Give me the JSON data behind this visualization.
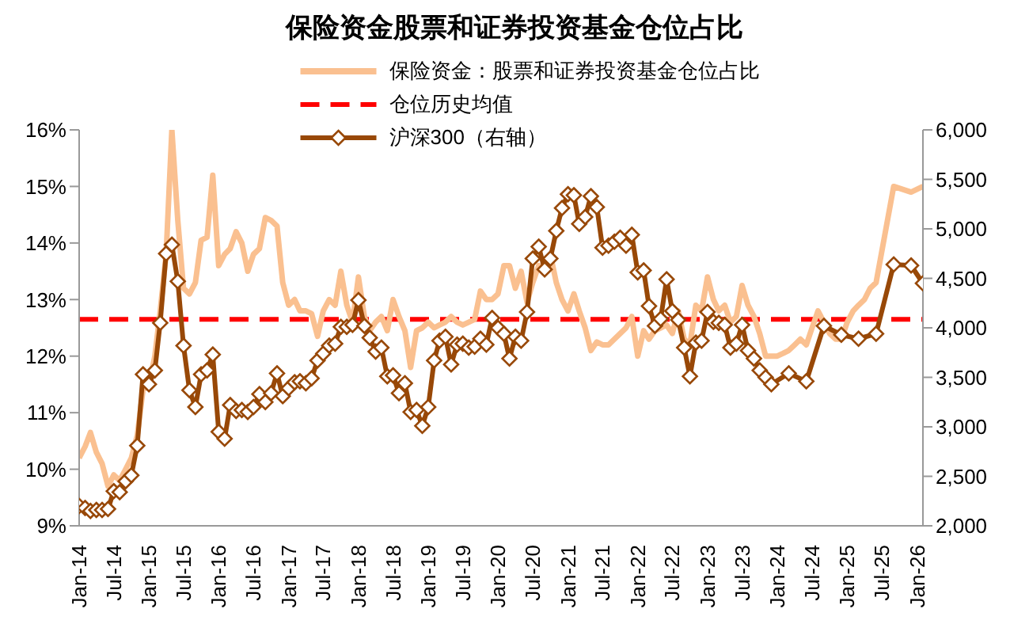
{
  "chart_data": {
    "type": "line",
    "title": "保险资金股票和证券投资基金仓位占比",
    "series": [
      {
        "name": "保险资金：股票和证券投资基金仓位占比",
        "color": "#fac090",
        "marker": "none",
        "line_style": "solid",
        "x": [
          "2014-01",
          "2014-02",
          "2014-03",
          "2014-04",
          "2014-05",
          "2014-06",
          "2014-07",
          "2014-08",
          "2014-09",
          "2014-10",
          "2014-11",
          "2014-12",
          "2015-01",
          "2015-02",
          "2015-03",
          "2015-04",
          "2015-05",
          "2015-06",
          "2015-07",
          "2015-08",
          "2015-09",
          "2015-10",
          "2015-11",
          "2015-12",
          "2016-01",
          "2016-02",
          "2016-03",
          "2016-04",
          "2016-05",
          "2016-06",
          "2016-07",
          "2016-08",
          "2016-09",
          "2016-10",
          "2016-11",
          "2016-12",
          "2017-01",
          "2017-02",
          "2017-03",
          "2017-04",
          "2017-05",
          "2017-06",
          "2017-07",
          "2017-08",
          "2017-09",
          "2017-10",
          "2017-11",
          "2017-12",
          "2018-01",
          "2018-02",
          "2018-03",
          "2018-04",
          "2018-05",
          "2018-06",
          "2018-07",
          "2018-08",
          "2018-09",
          "2018-10",
          "2018-11",
          "2018-12",
          "2019-01",
          "2019-02",
          "2019-03",
          "2019-04",
          "2019-05",
          "2019-06",
          "2019-07",
          "2019-08",
          "2019-09",
          "2019-10",
          "2019-11",
          "2019-12",
          "2020-01",
          "2020-02",
          "2020-03",
          "2020-04",
          "2020-05",
          "2020-06",
          "2020-07",
          "2020-08",
          "2020-09",
          "2020-10",
          "2020-11",
          "2020-12",
          "2021-01",
          "2021-02",
          "2021-03",
          "2021-04",
          "2021-05",
          "2021-06",
          "2021-07",
          "2021-08",
          "2021-09",
          "2021-10",
          "2021-11",
          "2021-12",
          "2022-01",
          "2022-02",
          "2022-03",
          "2022-04",
          "2022-05",
          "2022-06",
          "2022-07",
          "2022-08",
          "2022-09",
          "2022-10",
          "2022-11",
          "2022-12",
          "2023-01",
          "2023-02",
          "2023-03",
          "2023-04",
          "2023-05",
          "2023-06",
          "2023-07",
          "2023-08",
          "2023-09",
          "2023-10",
          "2023-11",
          "2023-12",
          "2024-01",
          "2024-02",
          "2024-03",
          "2024-04",
          "2024-05",
          "2024-06",
          "2024-07",
          "2024-08",
          "2024-09",
          "2024-10",
          "2024-11",
          "2024-12",
          "2025-01",
          "2025-02",
          "2025-03",
          "2025-04",
          "2025-05",
          "2025-06",
          "2025-09",
          "2025-12",
          "2026-02"
        ],
        "values": [
          10.2,
          10.4,
          10.65,
          10.3,
          10.1,
          9.7,
          9.9,
          9.8,
          10.0,
          10.2,
          10.6,
          11.4,
          11.5,
          12.0,
          12.8,
          13.8,
          16.0,
          14.4,
          13.2,
          13.1,
          13.3,
          14.05,
          14.1,
          15.2,
          13.6,
          13.8,
          13.9,
          14.2,
          14.0,
          13.5,
          13.8,
          13.9,
          14.45,
          14.4,
          14.3,
          13.3,
          12.9,
          13.0,
          12.8,
          12.8,
          12.75,
          12.35,
          12.8,
          13.0,
          12.9,
          13.5,
          12.9,
          12.6,
          13.4,
          12.7,
          12.45,
          12.6,
          12.7,
          12.45,
          13.0,
          12.7,
          12.45,
          11.8,
          12.45,
          12.5,
          12.6,
          12.5,
          12.55,
          12.6,
          12.7,
          12.6,
          12.55,
          12.6,
          12.65,
          13.15,
          13.0,
          13.0,
          13.1,
          13.6,
          13.6,
          13.2,
          13.5,
          12.95,
          13.3,
          13.6,
          13.5,
          13.8,
          13.3,
          13.0,
          12.8,
          13.1,
          12.8,
          12.5,
          12.1,
          12.25,
          12.2,
          12.2,
          12.3,
          12.4,
          12.5,
          12.7,
          12.0,
          12.45,
          12.3,
          12.45,
          12.5,
          12.55,
          12.4,
          12.8,
          12.3,
          12.2,
          12.9,
          12.8,
          13.4,
          13.0,
          12.8,
          12.9,
          12.6,
          12.7,
          13.25,
          12.9,
          12.7,
          12.4,
          12.0,
          12.0,
          12.0,
          12.05,
          12.1,
          12.2,
          12.3,
          12.2,
          12.5,
          12.8,
          12.6,
          12.4,
          12.3,
          12.3,
          12.6,
          12.8,
          12.9,
          13.0,
          13.2,
          13.3,
          15.0,
          14.9,
          15.0
        ]
      },
      {
        "name": "沪深300（右轴）",
        "color": "#984807",
        "marker": "diamond",
        "line_style": "solid",
        "axis": "y2",
        "x": [
          "2014-01",
          "2014-02",
          "2014-03",
          "2014-04",
          "2014-05",
          "2014-06",
          "2014-07",
          "2014-08",
          "2014-09",
          "2014-10",
          "2014-11",
          "2014-12",
          "2015-01",
          "2015-02",
          "2015-03",
          "2015-04",
          "2015-05",
          "2015-06",
          "2015-07",
          "2015-08",
          "2015-09",
          "2015-10",
          "2015-11",
          "2015-12",
          "2016-01",
          "2016-02",
          "2016-03",
          "2016-04",
          "2016-05",
          "2016-06",
          "2016-07",
          "2016-08",
          "2016-09",
          "2016-10",
          "2016-11",
          "2016-12",
          "2017-01",
          "2017-02",
          "2017-03",
          "2017-04",
          "2017-05",
          "2017-06",
          "2017-07",
          "2017-08",
          "2017-09",
          "2017-10",
          "2017-11",
          "2017-12",
          "2018-01",
          "2018-02",
          "2018-03",
          "2018-04",
          "2018-05",
          "2018-06",
          "2018-07",
          "2018-08",
          "2018-09",
          "2018-10",
          "2018-11",
          "2018-12",
          "2019-01",
          "2019-02",
          "2019-03",
          "2019-04",
          "2019-05",
          "2019-06",
          "2019-07",
          "2019-08",
          "2019-09",
          "2019-10",
          "2019-11",
          "2019-12",
          "2020-01",
          "2020-02",
          "2020-03",
          "2020-04",
          "2020-05",
          "2020-06",
          "2020-07",
          "2020-08",
          "2020-09",
          "2020-10",
          "2020-11",
          "2020-12",
          "2021-01",
          "2021-02",
          "2021-03",
          "2021-04",
          "2021-05",
          "2021-06",
          "2021-07",
          "2021-08",
          "2021-09",
          "2021-10",
          "2021-11",
          "2021-12",
          "2022-01",
          "2022-02",
          "2022-03",
          "2022-04",
          "2022-05",
          "2022-06",
          "2022-07",
          "2022-08",
          "2022-09",
          "2022-10",
          "2022-11",
          "2022-12",
          "2023-01",
          "2023-02",
          "2023-03",
          "2023-04",
          "2023-05",
          "2023-06",
          "2023-07",
          "2023-08",
          "2023-09",
          "2023-10",
          "2023-11",
          "2023-12",
          "2024-03",
          "2024-06",
          "2024-09",
          "2024-12",
          "2025-03",
          "2025-06",
          "2025-09",
          "2025-12",
          "2026-02"
        ],
        "values": [
          2200,
          2180,
          2150,
          2160,
          2160,
          2170,
          2350,
          2340,
          2450,
          2510,
          2810,
          3530,
          3430,
          3570,
          4050,
          4750,
          4840,
          4470,
          3820,
          3370,
          3200,
          3530,
          3570,
          3730,
          2950,
          2880,
          3220,
          3160,
          3170,
          3150,
          3200,
          3330,
          3250,
          3340,
          3540,
          3310,
          3390,
          3450,
          3460,
          3440,
          3490,
          3670,
          3740,
          3820,
          3840,
          4010,
          4010,
          4030,
          4280,
          4020,
          3900,
          3760,
          3800,
          3510,
          3520,
          3340,
          3440,
          3150,
          3170,
          3010,
          3200,
          3670,
          3870,
          3910,
          3630,
          3830,
          3840,
          3800,
          3810,
          3890,
          3830,
          4100,
          4000,
          3940,
          3690,
          3910,
          3870,
          4160,
          4700,
          4820,
          4590,
          4700,
          4980,
          5210,
          5350,
          5340,
          5050,
          5120,
          5330,
          5220,
          4810,
          4830,
          4870,
          4910,
          4830,
          4940,
          4560,
          4580,
          4220,
          4020,
          4090,
          4490,
          4170,
          4080,
          3800,
          3510,
          3850,
          3870,
          4160,
          4060,
          4050,
          4030,
          3800,
          3840,
          4030,
          3770,
          3690,
          3570,
          3500,
          3430,
          3540,
          3460,
          4020,
          3930,
          3890,
          3940,
          4640,
          4630,
          4450
        ]
      }
    ],
    "ref_lines": [
      {
        "axis": "y",
        "value": 12.65,
        "label": "仓位历史均值",
        "color": "#ff0000",
        "line_style": "dashed"
      }
    ],
    "xlim": [
      "2014-01",
      "2026-02"
    ],
    "xticks": [
      {
        "value": "2014-01",
        "label": "Jan-14"
      },
      {
        "value": "2014-07",
        "label": "Jul-14"
      },
      {
        "value": "2015-01",
        "label": "Jan-15"
      },
      {
        "value": "2015-07",
        "label": "Jul-15"
      },
      {
        "value": "2016-01",
        "label": "Jan-16"
      },
      {
        "value": "2016-07",
        "label": "Jul-16"
      },
      {
        "value": "2017-01",
        "label": "Jan-17"
      },
      {
        "value": "2017-07",
        "label": "Jul-17"
      },
      {
        "value": "2018-01",
        "label": "Jan-18"
      },
      {
        "value": "2018-07",
        "label": "Jul-18"
      },
      {
        "value": "2019-01",
        "label": "Jan-19"
      },
      {
        "value": "2019-07",
        "label": "Jul-19"
      },
      {
        "value": "2020-01",
        "label": "Jan-20"
      },
      {
        "value": "2020-07",
        "label": "Jul-20"
      },
      {
        "value": "2021-01",
        "label": "Jan-21"
      },
      {
        "value": "2021-07",
        "label": "Jul-21"
      },
      {
        "value": "2022-01",
        "label": "Jan-22"
      },
      {
        "value": "2022-07",
        "label": "Jul-22"
      },
      {
        "value": "2023-01",
        "label": "Jan-23"
      },
      {
        "value": "2023-07",
        "label": "Jul-23"
      },
      {
        "value": "2024-01",
        "label": "Jan-24"
      },
      {
        "value": "2024-07",
        "label": "Jul-24"
      },
      {
        "value": "2025-01",
        "label": "Jan-25"
      },
      {
        "value": "2025-07",
        "label": "Jul-25"
      },
      {
        "value": "2026-01",
        "label": "Jan-26"
      }
    ],
    "ylim": [
      9,
      16
    ],
    "yticks": [
      {
        "value": 9,
        "label": "9%"
      },
      {
        "value": 10,
        "label": "10%"
      },
      {
        "value": 11,
        "label": "11%"
      },
      {
        "value": 12,
        "label": "12%"
      },
      {
        "value": 13,
        "label": "13%"
      },
      {
        "value": 14,
        "label": "14%"
      },
      {
        "value": 15,
        "label": "15%"
      },
      {
        "value": 16,
        "label": "16%"
      }
    ],
    "y2lim": [
      2000,
      6000
    ],
    "y2ticks": [
      {
        "value": 2000,
        "label": "2,000"
      },
      {
        "value": 2500,
        "label": "2,500"
      },
      {
        "value": 3000,
        "label": "3,000"
      },
      {
        "value": 3500,
        "label": "3,500"
      },
      {
        "value": 4000,
        "label": "4,000"
      },
      {
        "value": 4500,
        "label": "4,500"
      },
      {
        "value": 5000,
        "label": "5,000"
      },
      {
        "value": 5500,
        "label": "5,500"
      },
      {
        "value": 6000,
        "label": "6,000"
      }
    ],
    "grid": false,
    "legend": "top"
  }
}
